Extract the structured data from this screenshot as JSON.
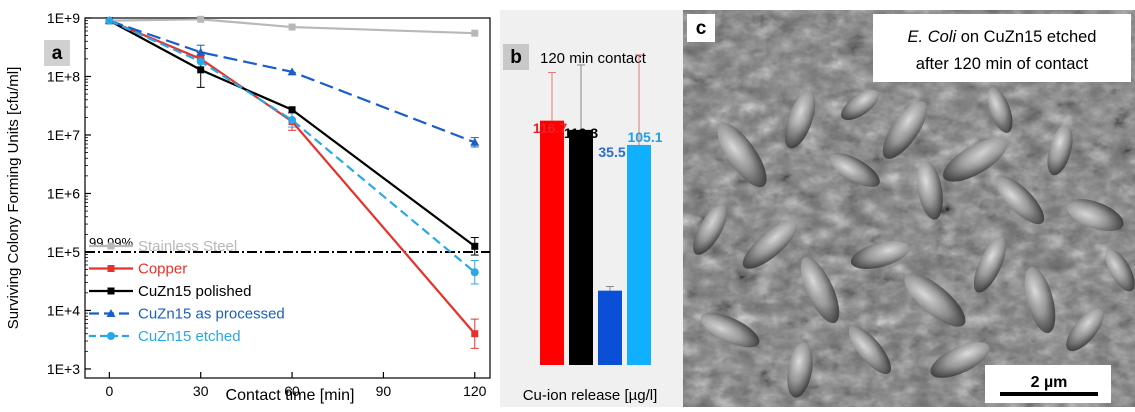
{
  "chart_data": [
    {
      "type": "line",
      "panel_label": "a",
      "xlabel": "Contact time [min]",
      "ylabel": "Surviving Colony Forming Units [cfu/ml]",
      "x": [
        0,
        30,
        60,
        120
      ],
      "xlim": [
        -8,
        125
      ],
      "ylim": [
        700,
        1000000000
      ],
      "yscale": "log",
      "xticks": [
        "0",
        "30",
        "60",
        "90",
        "120"
      ],
      "yticks": [
        "1E+3",
        "1E+4",
        "1E+5",
        "1E+6",
        "1E+7",
        "1E+8",
        "1E+9"
      ],
      "threshold": {
        "value": 100000,
        "label": "99.99%"
      },
      "legend_placement": "bottom-left",
      "series": [
        {
          "name": "Stainless Steel",
          "color": "#b8b8b8",
          "dash": "solid",
          "marker": "square",
          "values": [
            900000000,
            950000000,
            700000000,
            550000000
          ]
        },
        {
          "name": "Copper",
          "color": "#e8312a",
          "dash": "solid",
          "marker": "square",
          "values": [
            900000000,
            200000000,
            17000000,
            4000
          ],
          "err": [
            0,
            0,
            0.15,
            0.25
          ]
        },
        {
          "name": "CuZn15 polished",
          "color": "#000000",
          "dash": "solid",
          "marker": "square",
          "values": [
            900000000,
            130000000,
            27000000,
            125000
          ],
          "err": [
            0,
            0.3,
            0,
            0.15
          ]
        },
        {
          "name": "CuZn15 as processed",
          "color": "#1a5fc8",
          "dash": "longdash",
          "marker": "triangle",
          "values": [
            900000000,
            260000000,
            120000000,
            7500000
          ],
          "err": [
            0,
            0.12,
            0,
            0.08
          ]
        },
        {
          "name": "CuZn15 etched",
          "color": "#29a8e8",
          "dash": "dash",
          "marker": "circle",
          "values": [
            900000000,
            180000000,
            18000000,
            45000
          ],
          "err": [
            0,
            0,
            0.12,
            0.2
          ]
        }
      ]
    },
    {
      "type": "bar",
      "panel_label": "b",
      "title": "120 min contact",
      "xlabel": "Cu-ion release [µg/l]",
      "ylim": [
        0,
        160
      ],
      "categories": [
        "Copper",
        "CuZn15 polished",
        "CuZn15 as processed",
        "CuZn15 etched"
      ],
      "values": [
        116.7,
        112.3,
        35.5,
        105.1
      ],
      "value_labels": [
        "116.7",
        "112.3",
        "35.5",
        "105.1"
      ],
      "errors": [
        23,
        31,
        2,
        43
      ],
      "colors": [
        "#ff0000",
        "#000000",
        "#0b4fd6",
        "#11b0ff"
      ],
      "label_colors": [
        "#e8202a",
        "#000000",
        "#2b6ccf",
        "#1ea0e6"
      ]
    }
  ],
  "panel_c": {
    "panel_label": "c",
    "caption_italic": "E. Coli",
    "caption_line1": " on CuZn15 etched",
    "caption_line2": "after 120 min of contact",
    "scale_bar_label": "2 µm"
  }
}
